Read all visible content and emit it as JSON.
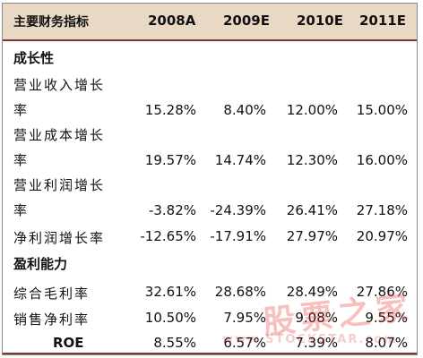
{
  "header": {
    "label": "主要财务指标",
    "years": [
      "2008A",
      "2009E",
      "2010E",
      "2011E"
    ]
  },
  "sections": {
    "growth": "成长性",
    "profitability": "盈利能力"
  },
  "rows": [
    {
      "label_line1": "营业收入增长",
      "label_line2": "率",
      "values": [
        "15.28%",
        "8.40%",
        "12.00%",
        "15.00%"
      ]
    },
    {
      "label_line1": "营业成本增长",
      "label_line2": "率",
      "values": [
        "19.57%",
        "14.74%",
        "12.30%",
        "16.00%"
      ]
    },
    {
      "label_line1": "营业利润增长",
      "label_line2": "率",
      "values": [
        "-3.82%",
        "-24.39%",
        "26.41%",
        "27.18%"
      ]
    },
    {
      "label": "净利润增长率",
      "values": [
        "-12.65%",
        "-17.91%",
        "27.97%",
        "20.97%"
      ]
    },
    {
      "label": "综合毛利率",
      "values": [
        "32.61%",
        "28.68%",
        "28.49%",
        "27.86%"
      ]
    },
    {
      "label": "销售净利率",
      "values": [
        "10.50%",
        "7.95%",
        "9.08%",
        "9.55%"
      ]
    },
    {
      "label": "ROE",
      "values": [
        "8.55%",
        "6.57%",
        "7.39%",
        "8.07%"
      ]
    }
  ],
  "watermark": {
    "text_cn": "股票之家",
    "text_en": "www.STOCKSTAR.com"
  },
  "colors": {
    "header_bg": "#e9d9c4",
    "rule": "#7a3a2f",
    "watermark": "#e6201c"
  }
}
